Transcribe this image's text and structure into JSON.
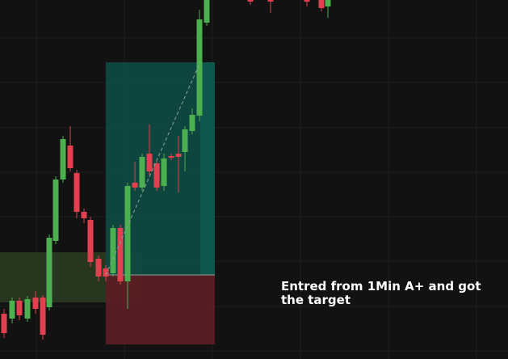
{
  "annotation": {
    "text": "Entred from 1Min A+ and got the target"
  },
  "colors": {
    "background": "#121212",
    "grid": "#1f1f1f",
    "bull": "#4caf50",
    "bear": "#e2404e",
    "profit_zone": "#0f4a42",
    "loss_zone": "#5a1f25",
    "demand_zone": "#2b3b22"
  },
  "icons": [
    "long-position-tool",
    "dashed-trend-line"
  ]
}
